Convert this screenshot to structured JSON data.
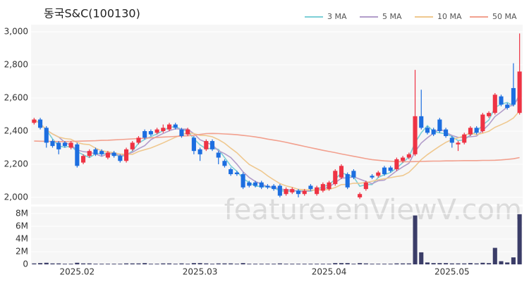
{
  "watermark": "feature.enViewV.com",
  "chart_data": [
    {
      "type": "candlestick",
      "title": "동국S&C(100130)",
      "categories": [
        null,
        null,
        null,
        null,
        null,
        null,
        null,
        "2025.02",
        null,
        null,
        null,
        null,
        null,
        null,
        null,
        null,
        null,
        null,
        null,
        null,
        null,
        null,
        null,
        null,
        null,
        null,
        null,
        "2025.03",
        null,
        null,
        null,
        null,
        null,
        null,
        null,
        null,
        null,
        null,
        null,
        null,
        null,
        null,
        null,
        null,
        null,
        null,
        null,
        null,
        "2025.04",
        null,
        null,
        null,
        null,
        null,
        null,
        null,
        null,
        null,
        null,
        null,
        null,
        null,
        null,
        null,
        null,
        null,
        null,
        null,
        "2025.05",
        null,
        null,
        null,
        null,
        null,
        null,
        null,
        null,
        null,
        null,
        null
      ],
      "open": [
        2450,
        2470,
        2420,
        2340,
        2330,
        2330,
        2300,
        2320,
        2210,
        2250,
        2290,
        2280,
        2240,
        2270,
        2250,
        2220,
        2290,
        2330,
        2400,
        2400,
        2390,
        2400,
        2410,
        2440,
        2410,
        2380,
        2360,
        2290,
        2290,
        2340,
        2270,
        2220,
        2170,
        2150,
        2140,
        2090,
        2090,
        2090,
        2070,
        2070,
        2070,
        2020,
        2030,
        2040,
        2020,
        2070,
        2020,
        2040,
        2050,
        2080,
        2120,
        2140,
        2160,
        2000,
        2050,
        2130,
        2130,
        2180,
        2180,
        2170,
        2220,
        2240,
        2260,
        2490,
        2420,
        2410,
        2470,
        2410,
        2360,
        2320,
        2330,
        2380,
        2420,
        2400,
        2490,
        2510,
        2610,
        2560,
        2660,
        2510
      ],
      "high": [
        2480,
        2480,
        2430,
        2350,
        2340,
        2340,
        2340,
        2330,
        2260,
        2290,
        2300,
        2290,
        2280,
        2280,
        2260,
        2300,
        2340,
        2370,
        2410,
        2410,
        2420,
        2440,
        2450,
        2450,
        2420,
        2420,
        2370,
        2300,
        2350,
        2350,
        2280,
        2230,
        2180,
        2160,
        2150,
        2100,
        2100,
        2100,
        2080,
        2080,
        2080,
        2060,
        2060,
        2050,
        2050,
        2080,
        2070,
        2090,
        2100,
        2170,
        2200,
        2150,
        2170,
        2030,
        2100,
        2140,
        2160,
        2190,
        2190,
        2240,
        2250,
        2270,
        2770,
        2650,
        2430,
        2420,
        2480,
        2420,
        2370,
        2340,
        2390,
        2430,
        2430,
        2510,
        2520,
        2630,
        2620,
        2570,
        2810,
        2990
      ],
      "low": [
        2440,
        2410,
        2300,
        2300,
        2260,
        2300,
        2290,
        2180,
        2200,
        2240,
        2250,
        2250,
        2230,
        2240,
        2210,
        2210,
        2280,
        2320,
        2350,
        2370,
        2380,
        2390,
        2400,
        2410,
        2360,
        2370,
        2260,
        2220,
        2280,
        2280,
        2200,
        2180,
        2130,
        2130,
        2050,
        2060,
        2060,
        2050,
        2050,
        2040,
        2000,
        2010,
        2020,
        2000,
        2010,
        2040,
        2010,
        2030,
        2040,
        2070,
        2110,
        2050,
        2110,
        1990,
        2040,
        2110,
        2120,
        2130,
        2150,
        2160,
        2210,
        2230,
        2250,
        2410,
        2380,
        2370,
        2390,
        2360,
        2300,
        2280,
        2320,
        2370,
        2380,
        2390,
        2480,
        2500,
        2550,
        2530,
        2550,
        2500
      ],
      "close": [
        2470,
        2420,
        2330,
        2310,
        2290,
        2310,
        2330,
        2190,
        2250,
        2280,
        2260,
        2260,
        2270,
        2250,
        2220,
        2290,
        2330,
        2360,
        2360,
        2380,
        2410,
        2420,
        2440,
        2420,
        2370,
        2410,
        2280,
        2260,
        2340,
        2290,
        2240,
        2190,
        2140,
        2140,
        2060,
        2070,
        2070,
        2060,
        2060,
        2050,
        2010,
        2050,
        2050,
        2020,
        2040,
        2050,
        2060,
        2080,
        2090,
        2160,
        2190,
        2060,
        2120,
        2020,
        2090,
        2120,
        2150,
        2140,
        2160,
        2230,
        2240,
        2260,
        2490,
        2420,
        2390,
        2380,
        2400,
        2370,
        2330,
        2330,
        2380,
        2420,
        2390,
        2500,
        2510,
        2620,
        2560,
        2540,
        2560,
        2760
      ],
      "up_color": "#ee3344",
      "down_color": "#1c6ee0",
      "series": [
        {
          "name": "3 MA",
          "color": "#7ccfd6",
          "values": [
            2470,
            2445,
            2407,
            2353,
            2310,
            2303,
            2310,
            2277,
            2257,
            2240,
            2263,
            2267,
            2263,
            2260,
            2247,
            2253,
            2280,
            2327,
            2350,
            2367,
            2383,
            2403,
            2423,
            2427,
            2410,
            2400,
            2353,
            2317,
            2293,
            2297,
            2290,
            2240,
            2190,
            2157,
            2113,
            2090,
            2067,
            2067,
            2063,
            2057,
            2040,
            2037,
            2037,
            2040,
            2037,
            2037,
            2050,
            2063,
            2077,
            2110,
            2147,
            2137,
            2123,
            2067,
            2077,
            2077,
            2120,
            2137,
            2150,
            2177,
            2210,
            2243,
            2330,
            2390,
            2433,
            2397,
            2390,
            2383,
            2367,
            2343,
            2347,
            2377,
            2397,
            2437,
            2467,
            2543,
            2563,
            2573,
            2553,
            2620
          ]
        },
        {
          "name": "5 MA",
          "color": "#b29dca",
          "values": [
            2470,
            2445,
            2407,
            2383,
            2364,
            2332,
            2314,
            2286,
            2276,
            2272,
            2262,
            2248,
            2264,
            2264,
            2252,
            2258,
            2272,
            2294,
            2312,
            2348,
            2368,
            2386,
            2402,
            2414,
            2412,
            2412,
            2384,
            2348,
            2332,
            2316,
            2282,
            2264,
            2240,
            2200,
            2154,
            2120,
            2096,
            2080,
            2064,
            2062,
            2050,
            2046,
            2044,
            2036,
            2034,
            2042,
            2044,
            2050,
            2064,
            2088,
            2116,
            2118,
            2124,
            2110,
            2096,
            2082,
            2100,
            2104,
            2132,
            2160,
            2184,
            2206,
            2276,
            2328,
            2360,
            2388,
            2416,
            2392,
            2374,
            2362,
            2362,
            2366,
            2370,
            2404,
            2440,
            2488,
            2516,
            2546,
            2558,
            2608
          ]
        },
        {
          "name": "10 MA",
          "color": "#efc88f",
          "values": [
            2470,
            2445,
            2407,
            2383,
            2364,
            2355,
            2351,
            2331,
            2322,
            2318,
            2297,
            2281,
            2275,
            2269,
            2262,
            2260,
            2260,
            2277,
            2288,
            2298,
            2313,
            2329,
            2346,
            2363,
            2378,
            2390,
            2385,
            2375,
            2373,
            2366,
            2349,
            2327,
            2297,
            2269,
            2233,
            2199,
            2178,
            2158,
            2130,
            2106,
            2083,
            2069,
            2060,
            2048,
            2046,
            2044,
            2043,
            2045,
            2048,
            2059,
            2077,
            2078,
            2085,
            2085,
            2090,
            2097,
            2106,
            2112,
            2119,
            2126,
            2131,
            2151,
            2188,
            2228,
            2258,
            2284,
            2309,
            2332,
            2349,
            2359,
            2373,
            2389,
            2379,
            2387,
            2399,
            2423,
            2439,
            2456,
            2479,
            2522
          ]
        },
        {
          "name": "50 MA",
          "color": "#f2a08e",
          "values": [
            2340,
            2339,
            2338,
            2338,
            2337,
            2337,
            2338,
            2339,
            2340,
            2341,
            2342,
            2344,
            2345,
            2347,
            2349,
            2351,
            2353,
            2355,
            2357,
            2360,
            2362,
            2364,
            2366,
            2368,
            2370,
            2372,
            2375,
            2380,
            2385,
            2386,
            2385,
            2383,
            2381,
            2378,
            2374,
            2370,
            2365,
            2359,
            2352,
            2346,
            2340,
            2332,
            2324,
            2316,
            2308,
            2300,
            2292,
            2284,
            2277,
            2270,
            2262,
            2255,
            2248,
            2241,
            2234,
            2228,
            2224,
            2220,
            2218,
            2216,
            2215,
            2215,
            2216,
            2217,
            2218,
            2219,
            2219,
            2220,
            2220,
            2221,
            2222,
            2222,
            2222,
            2223,
            2223,
            2224,
            2226,
            2229,
            2233,
            2240
          ]
        }
      ],
      "ylim": [
        1957,
        3043
      ],
      "yticks": [
        {
          "value": 2000,
          "label": "2,000"
        },
        {
          "value": 2200,
          "label": "2,200"
        },
        {
          "value": 2400,
          "label": "2,400"
        },
        {
          "value": 2600,
          "label": "2,600"
        },
        {
          "value": 2800,
          "label": "2,800"
        },
        {
          "value": 3000,
          "label": "3,000"
        }
      ],
      "grid": true,
      "legend": "top-right"
    },
    {
      "type": "bar",
      "color": "#3b3d68",
      "values": [
        150000,
        200000,
        250000,
        150000,
        150000,
        100000,
        100000,
        250000,
        150000,
        150000,
        100000,
        100000,
        100000,
        100000,
        100000,
        150000,
        150000,
        150000,
        200000,
        100000,
        100000,
        150000,
        150000,
        100000,
        150000,
        100000,
        200000,
        200000,
        150000,
        100000,
        150000,
        150000,
        150000,
        100000,
        200000,
        100000,
        100000,
        100000,
        100000,
        100000,
        150000,
        100000,
        100000,
        100000,
        100000,
        100000,
        100000,
        100000,
        100000,
        200000,
        200000,
        200000,
        100000,
        200000,
        150000,
        100000,
        100000,
        100000,
        100000,
        150000,
        150000,
        150000,
        7700000,
        1900000,
        300000,
        200000,
        200000,
        200000,
        150000,
        150000,
        150000,
        200000,
        150000,
        250000,
        200000,
        2600000,
        500000,
        300000,
        1100000,
        7900000
      ],
      "ylim": [
        0,
        9100000
      ],
      "yticks": [
        0,
        {
          "value": 2000000,
          "label": "2M"
        },
        {
          "value": 4000000,
          "label": "4M"
        },
        {
          "value": 6000000,
          "label": "6M"
        },
        {
          "value": 8000000,
          "label": "8M"
        }
      ],
      "grid": true
    }
  ]
}
